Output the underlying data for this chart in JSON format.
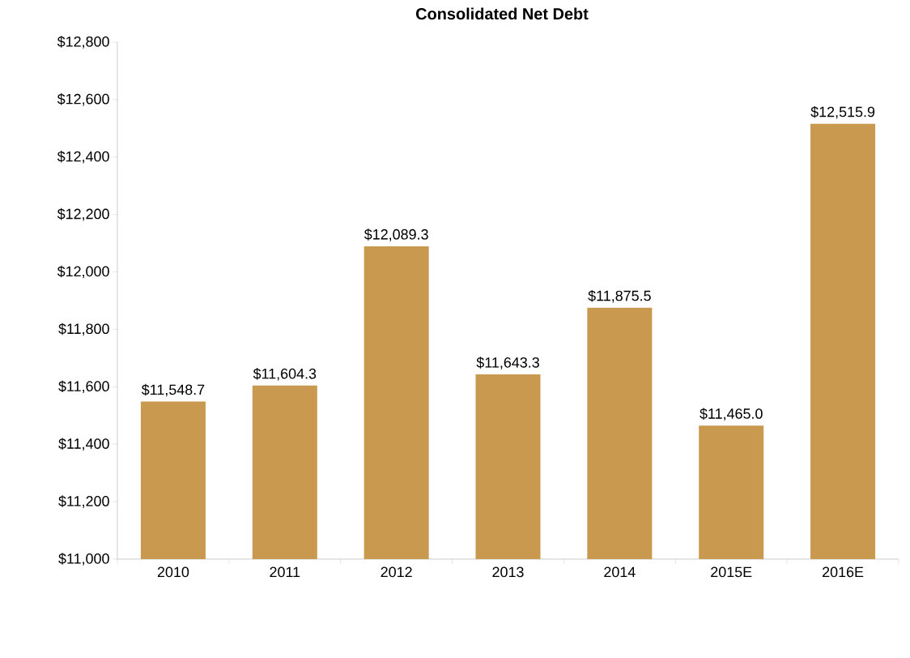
{
  "chart_data": {
    "type": "bar",
    "title": "Consolidated Net Debt",
    "categories": [
      "2010",
      "2011",
      "2012",
      "2013",
      "2014",
      "2015E",
      "2016E"
    ],
    "values": [
      11548.7,
      11604.3,
      12089.3,
      11643.3,
      11875.5,
      11465.0,
      12515.9
    ],
    "value_labels": [
      "$11,548.7",
      "$11,604.3",
      "$12,089.3",
      "$11,643.3",
      "$11,875.5",
      "$11,465.0",
      "$12,515.9"
    ],
    "color": "#c8994f",
    "ylim": [
      11000,
      12800
    ],
    "yticks": [
      {
        "value": 11000,
        "label": "$11,000"
      },
      {
        "value": 11200,
        "label": "$11,200"
      },
      {
        "value": 11400,
        "label": "$11,400"
      },
      {
        "value": 11600,
        "label": "$11,600"
      },
      {
        "value": 11800,
        "label": "$11,800"
      },
      {
        "value": 12000,
        "label": "$12,000"
      },
      {
        "value": 12200,
        "label": "$12,200"
      },
      {
        "value": 12400,
        "label": "$12,400"
      },
      {
        "value": 12600,
        "label": "$12,600"
      },
      {
        "value": 12800,
        "label": "$12,800"
      }
    ],
    "grid": false
  }
}
